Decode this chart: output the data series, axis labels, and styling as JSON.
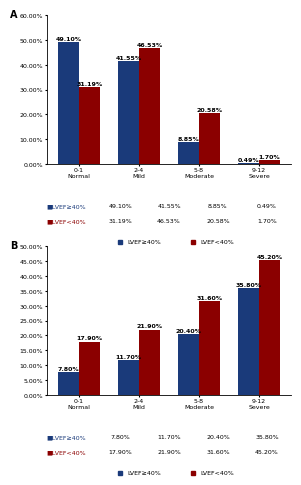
{
  "panel_A": {
    "categories": [
      "0-1\nNormal",
      "2-4\nMild",
      "5-8\nModerate",
      "9-12\nSevere"
    ],
    "lvef_ge40": [
      49.1,
      41.55,
      8.85,
      0.49
    ],
    "lvef_lt40": [
      31.19,
      46.53,
      20.58,
      1.7
    ],
    "ylim": [
      0,
      60
    ],
    "yticks": [
      0,
      10,
      20,
      30,
      40,
      50,
      60
    ],
    "ytick_labels": [
      "0.00%",
      "10.00%",
      "20.00%",
      "30.00%",
      "40.00%",
      "50.00%",
      "60.00%"
    ],
    "legend_table": [
      [
        "■LVEF≥40%",
        "49.10%",
        "41.55%",
        "8.85%",
        "0.49%"
      ],
      [
        "■LVEF<40%",
        "31.19%",
        "46.53%",
        "20.58%",
        "1.70%"
      ]
    ],
    "panel_label": "A"
  },
  "panel_B": {
    "categories": [
      "0-1\nNormal",
      "2-4\nMild",
      "5-8\nModerate",
      "9-12\nSevere"
    ],
    "lvef_ge40": [
      7.8,
      11.7,
      20.4,
      35.8
    ],
    "lvef_lt40": [
      17.9,
      21.9,
      31.6,
      45.2
    ],
    "ylim": [
      0,
      50
    ],
    "yticks": [
      0,
      5,
      10,
      15,
      20,
      25,
      30,
      35,
      40,
      45,
      50
    ],
    "ytick_labels": [
      "0.00%",
      "5.00%",
      "10.00%",
      "15.00%",
      "20.00%",
      "25.00%",
      "30.00%",
      "35.00%",
      "40.00%",
      "45.00%",
      "50.00%"
    ],
    "legend_table": [
      [
        "■LVEF≥40%",
        "7.80%",
        "11.70%",
        "20.40%",
        "35.80%"
      ],
      [
        "■LVEF<40%",
        "17.90%",
        "21.90%",
        "31.60%",
        "45.20%"
      ]
    ],
    "panel_label": "B"
  },
  "blue_color": "#1a3a7a",
  "red_color": "#8B0000",
  "bar_width": 0.35,
  "label_ge40": "LVEF≥40%",
  "label_lt40": "LVEF<40%",
  "value_fontsize": 4.5,
  "tick_fontsize": 4.5,
  "table_fontsize": 4.5,
  "legend_fontsize": 4.5,
  "panel_label_fontsize": 7
}
